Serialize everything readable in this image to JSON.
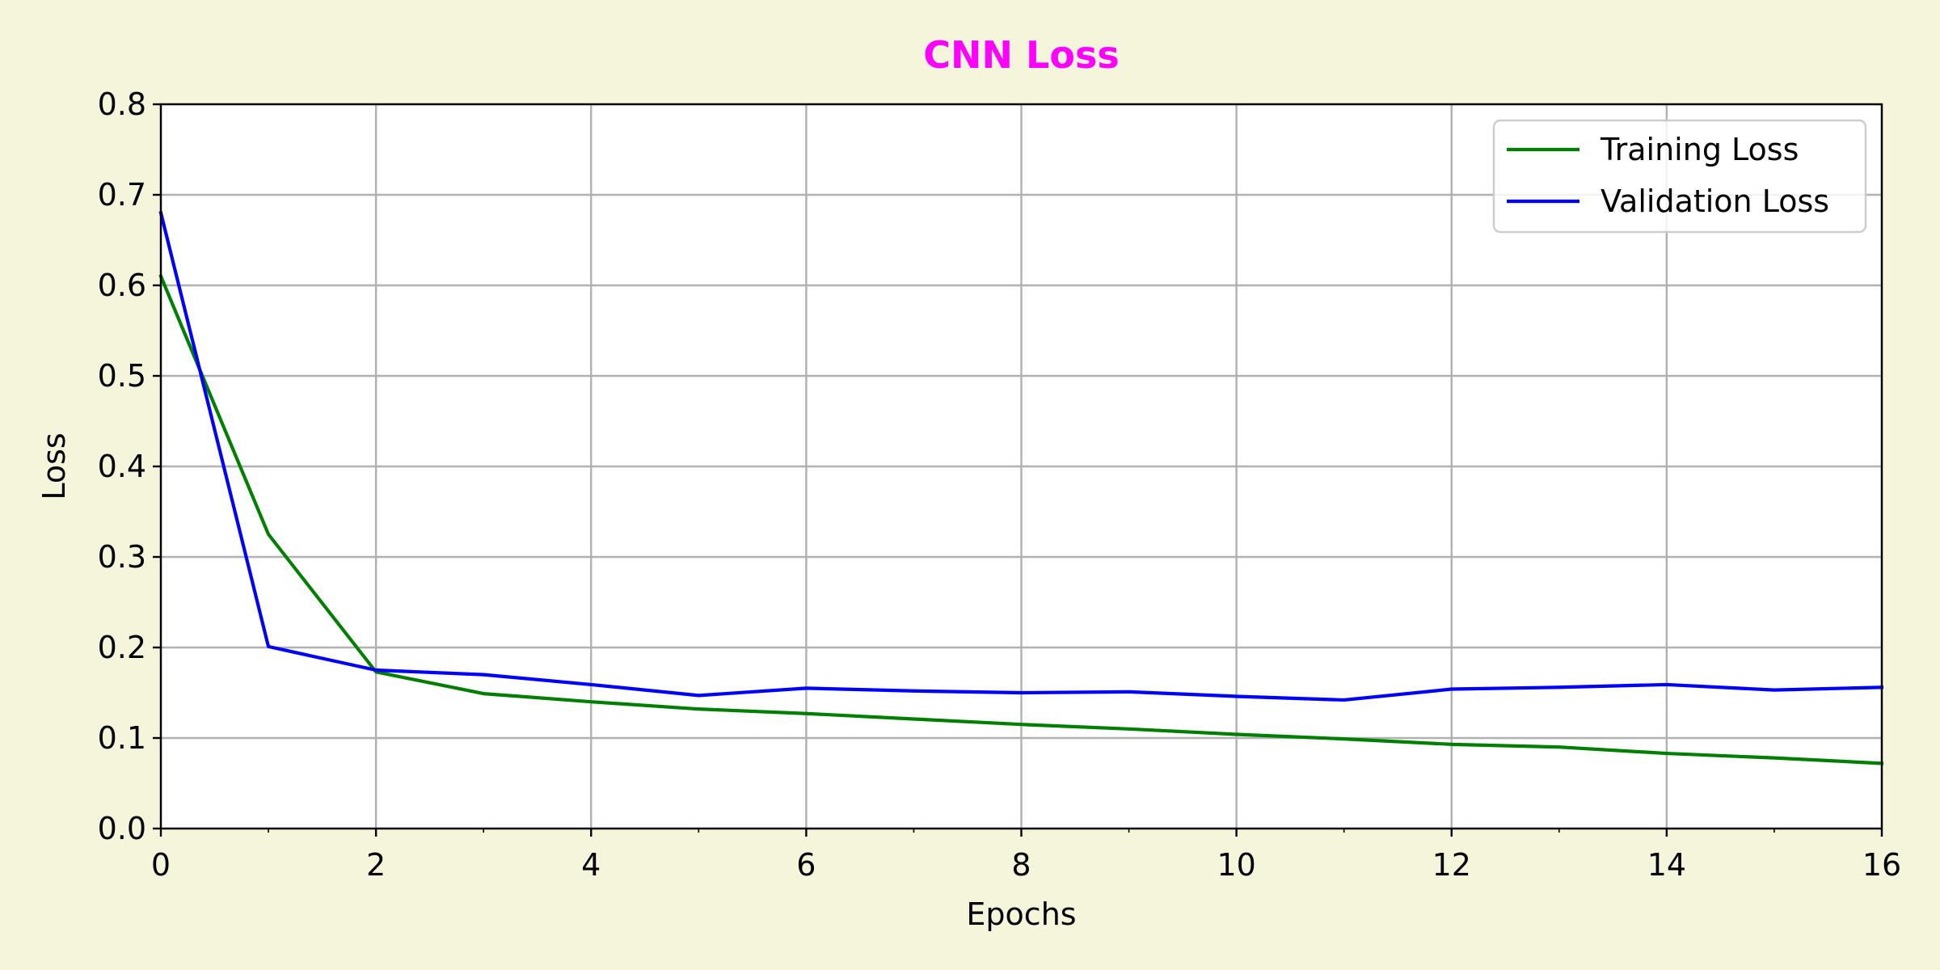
{
  "chart_data": {
    "type": "line",
    "title": "CNN Loss",
    "title_color": "#ff00ff",
    "xlabel": "Epochs",
    "ylabel": "Loss",
    "xlim": [
      0,
      16
    ],
    "ylim": [
      0,
      0.8
    ],
    "xticks": [
      "0",
      "2",
      "4",
      "6",
      "8",
      "10",
      "12",
      "14",
      "16"
    ],
    "yticks": [
      "0.0",
      "0.1",
      "0.2",
      "0.3",
      "0.4",
      "0.5",
      "0.6",
      "0.7",
      "0.8"
    ],
    "grid": true,
    "legend_position": "top-right",
    "x": [
      0,
      1,
      2,
      3,
      4,
      5,
      6,
      7,
      8,
      9,
      10,
      11,
      12,
      13,
      14,
      15,
      16
    ],
    "series": [
      {
        "name": "Training Loss",
        "color": "#008000",
        "values": [
          0.61,
          0.325,
          0.173,
          0.149,
          0.14,
          0.132,
          0.127,
          0.121,
          0.115,
          0.11,
          0.104,
          0.099,
          0.093,
          0.09,
          0.083,
          0.078,
          0.072
        ]
      },
      {
        "name": "Validation Loss",
        "color": "#0000ff",
        "values": [
          0.68,
          0.201,
          0.175,
          0.17,
          0.159,
          0.147,
          0.155,
          0.152,
          0.15,
          0.151,
          0.146,
          0.142,
          0.154,
          0.156,
          0.159,
          0.153,
          0.156
        ]
      }
    ]
  }
}
